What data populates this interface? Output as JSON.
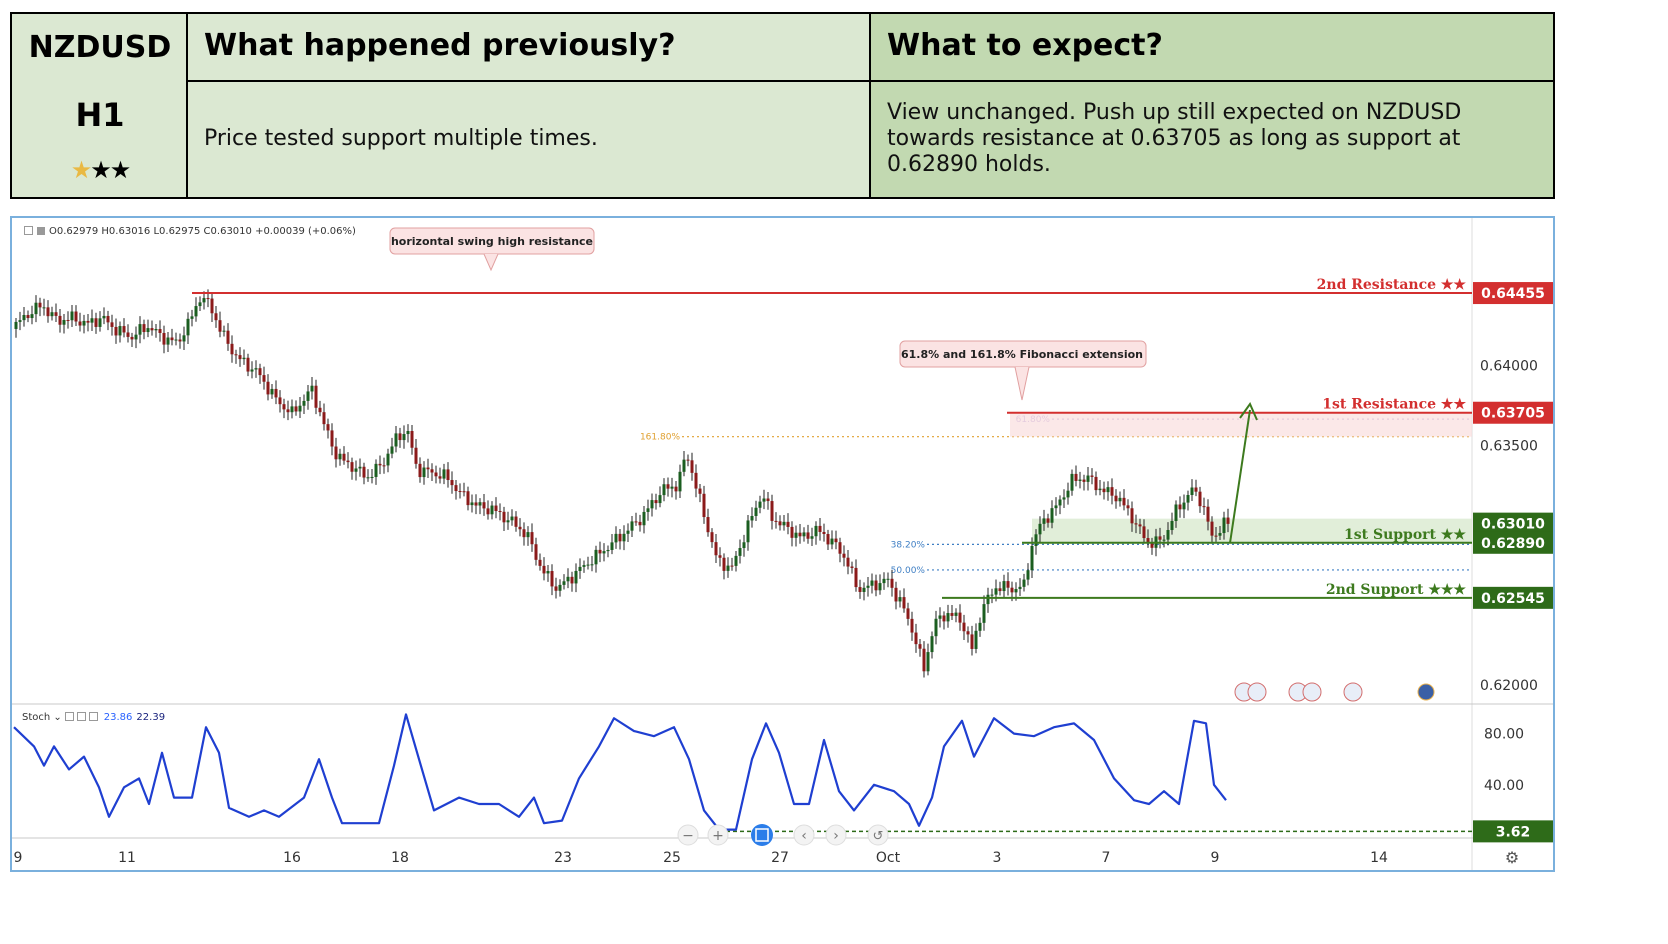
{
  "header": {
    "symbol": "NZDUSD",
    "timeframe": "H1",
    "stars": "★★★",
    "col_prev_title": "What happened previously?",
    "col_expect_title": "What to expect?",
    "prev_text": "Price tested support multiple times.",
    "expect_text": "View unchanged. Push up still expected on NZDUSD towards resistance at 0.63705 as long as support at 0.62890 holds."
  },
  "legend": {
    "ohlc": "O0.62979  H0.63016  L0.62975  C0.63010  +0.00039 (+0.06%)"
  },
  "stoch": {
    "label": "Stoch ⌄",
    "k": "23.86",
    "d": "22.39"
  },
  "chart_data": {
    "type": "candlestick",
    "symbol": "NZDUSD",
    "timeframe": "H1",
    "price_range": [
      0.6198,
      0.648
    ],
    "price_ticks": [
      "0.64000",
      "0.63500",
      "0.62000"
    ],
    "x_ticks": [
      "9",
      "11",
      "16",
      "18",
      "23",
      "25",
      "27",
      "Oct",
      "3",
      "7",
      "9",
      "14"
    ],
    "price_path": [
      [
        0,
        0.6423
      ],
      [
        15,
        0.6432
      ],
      [
        30,
        0.6438
      ],
      [
        45,
        0.6428
      ],
      [
        60,
        0.643
      ],
      [
        75,
        0.6426
      ],
      [
        90,
        0.643
      ],
      [
        105,
        0.6422
      ],
      [
        120,
        0.6418
      ],
      [
        135,
        0.6425
      ],
      [
        150,
        0.6418
      ],
      [
        165,
        0.6414
      ],
      [
        178,
        0.6428
      ],
      [
        188,
        0.6443
      ],
      [
        198,
        0.6438
      ],
      [
        210,
        0.642
      ],
      [
        225,
        0.6405
      ],
      [
        245,
        0.6396
      ],
      [
        265,
        0.6378
      ],
      [
        280,
        0.637
      ],
      [
        300,
        0.6385
      ],
      [
        312,
        0.6363
      ],
      [
        325,
        0.6343
      ],
      [
        340,
        0.6337
      ],
      [
        355,
        0.633
      ],
      [
        370,
        0.6338
      ],
      [
        385,
        0.6355
      ],
      [
        395,
        0.636
      ],
      [
        405,
        0.6335
      ],
      [
        420,
        0.6333
      ],
      [
        435,
        0.633
      ],
      [
        448,
        0.632
      ],
      [
        465,
        0.6312
      ],
      [
        480,
        0.631
      ],
      [
        500,
        0.6302
      ],
      [
        515,
        0.6294
      ],
      [
        530,
        0.6272
      ],
      [
        545,
        0.626
      ],
      [
        560,
        0.6268
      ],
      [
        575,
        0.6276
      ],
      [
        595,
        0.6286
      ],
      [
        610,
        0.6294
      ],
      [
        630,
        0.6305
      ],
      [
        650,
        0.6322
      ],
      [
        665,
        0.6325
      ],
      [
        675,
        0.6345
      ],
      [
        685,
        0.6322
      ],
      [
        695,
        0.63
      ],
      [
        705,
        0.6278
      ],
      [
        720,
        0.6273
      ],
      [
        735,
        0.6298
      ],
      [
        750,
        0.632
      ],
      [
        760,
        0.6305
      ],
      [
        775,
        0.6298
      ],
      [
        790,
        0.6292
      ],
      [
        805,
        0.6297
      ],
      [
        820,
        0.629
      ],
      [
        835,
        0.6278
      ],
      [
        845,
        0.626
      ],
      [
        860,
        0.6262
      ],
      [
        875,
        0.6266
      ],
      [
        890,
        0.625
      ],
      [
        900,
        0.6235
      ],
      [
        912,
        0.621
      ],
      [
        922,
        0.6238
      ],
      [
        935,
        0.6245
      ],
      [
        950,
        0.624
      ],
      [
        960,
        0.6222
      ],
      [
        970,
        0.6248
      ],
      [
        985,
        0.6262
      ],
      [
        1000,
        0.626
      ],
      [
        1012,
        0.6262
      ],
      [
        1020,
        0.6288
      ],
      [
        1030,
        0.6302
      ],
      [
        1045,
        0.6312
      ],
      [
        1060,
        0.6328
      ],
      [
        1075,
        0.633
      ],
      [
        1090,
        0.6322
      ],
      [
        1105,
        0.6318
      ],
      [
        1120,
        0.6305
      ],
      [
        1135,
        0.6289
      ],
      [
        1150,
        0.629
      ],
      [
        1165,
        0.631
      ],
      [
        1180,
        0.6322
      ],
      [
        1190,
        0.6315
      ],
      [
        1200,
        0.6292
      ],
      [
        1212,
        0.6301
      ]
    ],
    "levels": [
      {
        "label": "2nd Resistance ★★",
        "price": 0.64455,
        "tag": "0.64455",
        "color": "#d32f2f"
      },
      {
        "label": "1st Resistance ★★",
        "price": 0.63705,
        "tag": "0.63705",
        "color": "#d32f2f"
      },
      {
        "label": "1st Support ★★",
        "price": 0.6289,
        "tag": "0.62890",
        "color": "#3d7a1e"
      },
      {
        "label": "2nd Support ★★★",
        "price": 0.62545,
        "tag": "0.62545",
        "color": "#3d7a1e"
      }
    ],
    "current_price": {
      "price": 0.6301,
      "tag": "0.63010"
    },
    "fibonacci": [
      {
        "label": "161.80%",
        "price": 0.63555,
        "color": "#e0a030"
      },
      {
        "label": "61.80%",
        "price": 0.63665,
        "color": "#b39ddb"
      },
      {
        "label": "38.20%",
        "price": 0.6288,
        "color": "#3f7fc4"
      },
      {
        "label": "50.00%",
        "price": 0.6272,
        "color": "#3f7fc4"
      }
    ],
    "annotations": [
      "horizontal swing high resistance",
      "61.8% and 161.8% Fibonacci extension"
    ],
    "stoch_range": [
      0,
      100
    ],
    "stoch_ticks": [
      "80.00",
      "40.00"
    ],
    "stoch_oversold": {
      "value": 3.62,
      "tag": "3.62"
    },
    "stoch_path": [
      [
        0,
        85
      ],
      [
        20,
        70
      ],
      [
        30,
        55
      ],
      [
        40,
        70
      ],
      [
        55,
        52
      ],
      [
        70,
        62
      ],
      [
        85,
        38
      ],
      [
        95,
        15
      ],
      [
        110,
        38
      ],
      [
        125,
        45
      ],
      [
        135,
        25
      ],
      [
        148,
        65
      ],
      [
        160,
        30
      ],
      [
        178,
        30
      ],
      [
        192,
        85
      ],
      [
        205,
        65
      ],
      [
        215,
        22
      ],
      [
        235,
        15
      ],
      [
        250,
        20
      ],
      [
        265,
        15
      ],
      [
        290,
        30
      ],
      [
        305,
        60
      ],
      [
        318,
        30
      ],
      [
        328,
        10
      ],
      [
        345,
        10
      ],
      [
        365,
        10
      ],
      [
        380,
        55
      ],
      [
        392,
        95
      ],
      [
        405,
        60
      ],
      [
        420,
        20
      ],
      [
        445,
        30
      ],
      [
        465,
        25
      ],
      [
        485,
        25
      ],
      [
        505,
        15
      ],
      [
        520,
        30
      ],
      [
        530,
        10
      ],
      [
        548,
        12
      ],
      [
        565,
        45
      ],
      [
        585,
        70
      ],
      [
        600,
        92
      ],
      [
        620,
        82
      ],
      [
        640,
        78
      ],
      [
        660,
        85
      ],
      [
        675,
        60
      ],
      [
        690,
        20
      ],
      [
        705,
        5
      ],
      [
        722,
        5
      ],
      [
        738,
        60
      ],
      [
        752,
        88
      ],
      [
        765,
        65
      ],
      [
        780,
        25
      ],
      [
        795,
        25
      ],
      [
        810,
        75
      ],
      [
        825,
        35
      ],
      [
        840,
        20
      ],
      [
        860,
        40
      ],
      [
        880,
        35
      ],
      [
        895,
        25
      ],
      [
        905,
        8
      ],
      [
        918,
        30
      ],
      [
        930,
        70
      ],
      [
        948,
        90
      ],
      [
        960,
        62
      ],
      [
        980,
        92
      ],
      [
        1000,
        80
      ],
      [
        1020,
        78
      ],
      [
        1040,
        85
      ],
      [
        1060,
        88
      ],
      [
        1080,
        75
      ],
      [
        1100,
        45
      ],
      [
        1120,
        28
      ],
      [
        1135,
        25
      ],
      [
        1150,
        35
      ],
      [
        1165,
        25
      ],
      [
        1180,
        90
      ],
      [
        1192,
        88
      ],
      [
        1200,
        40
      ],
      [
        1212,
        28
      ]
    ]
  }
}
